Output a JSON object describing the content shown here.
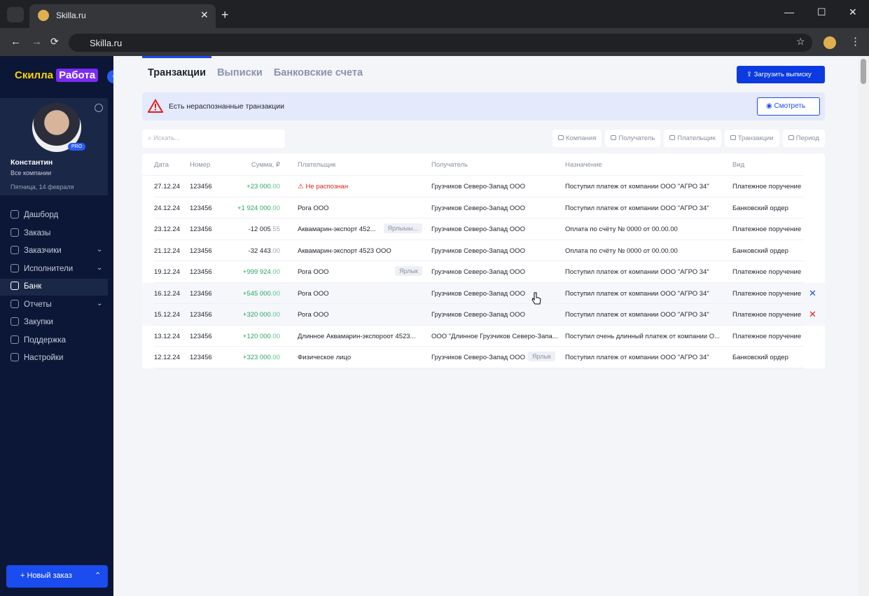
{
  "browser": {
    "tab_title": "Skilla.ru",
    "url": "Skilla.ru"
  },
  "sidebar": {
    "logo_part1": "Скилла",
    "logo_part2": "Работа",
    "profile": {
      "badge": "PRO",
      "name": "Константин",
      "company": "Все компании",
      "date": "Пятница, 14 февраля"
    },
    "menu": [
      {
        "label": "Дашборд",
        "chevron": false
      },
      {
        "label": "Заказы",
        "chevron": false
      },
      {
        "label": "Заказчики",
        "chevron": true
      },
      {
        "label": "Исполнители",
        "chevron": true
      },
      {
        "label": "Банк",
        "chevron": false,
        "active": true
      },
      {
        "label": "Отчеты",
        "chevron": true
      },
      {
        "label": "Закупки",
        "chevron": false
      },
      {
        "label": "Поддержка",
        "chevron": false
      },
      {
        "label": "Настройки",
        "chevron": false
      }
    ],
    "new_order": "Новый заказ"
  },
  "tabs": [
    "Транзакции",
    "Выписки",
    "Банковские счета"
  ],
  "upload_button": "Загрузить выписку",
  "alert": {
    "text": "Есть нераспознанные транзакции",
    "button": "Смотреть"
  },
  "search_placeholder": "Искать...",
  "filters": [
    "Компания",
    "Получатель",
    "Плательщик",
    "Транзакции",
    "Период"
  ],
  "table": {
    "headers": [
      "Дата",
      "Номер",
      "Сумма, ₽",
      "Плательщик",
      "Получатель",
      "Назначение",
      "Вид"
    ],
    "rows": [
      {
        "date": "27.12.24",
        "number": "123456",
        "amount": "+23 000",
        "amount_frac": ".00",
        "payer": "Не распознан",
        "payer_unrecognized": true,
        "recipient": "Грузчиков Северо-Запад ООО",
        "purpose": "Поступил платеж от компании ООО \"АГРО 34\"",
        "kind": "Платежное поручение"
      },
      {
        "date": "24.12.24",
        "number": "123456",
        "amount": "+1 924 000",
        "amount_frac": ".00",
        "payer": "Рога ООО",
        "recipient": "Грузчиков Северо-Запад ООО",
        "purpose": "Поступил платеж от компании ООО \"АГРО 34\"",
        "kind": "Банковский ордер"
      },
      {
        "date": "23.12.24",
        "number": "123456",
        "amount": "-12 005",
        "amount_frac": ".55",
        "payer": "Аквамарин-экспорт 452...",
        "payer_tag": "Ярлыыы...",
        "recipient": "Грузчиков Северо-Запад ООО",
        "purpose": "Оплата по счёту № 0000 от 00.00.00",
        "kind": "Платежное поручение"
      },
      {
        "date": "21.12.24",
        "number": "123456",
        "amount": "-32 443",
        "amount_frac": ".00",
        "payer": "Аквамарин-экспорт 4523 ООО",
        "recipient": "Грузчиков Северо-Запад ООО",
        "purpose": "Оплата по счёту № 0000 от 00.00.00",
        "kind": "Банковский ордер"
      },
      {
        "date": "19.12.24",
        "number": "123456",
        "amount": "+999 924",
        "amount_frac": ".00",
        "payer": "Рога ООО",
        "payer_tag": "Ярлык",
        "recipient": "Грузчиков Северо-Запад ООО",
        "purpose": "Поступил платеж от компании ООО \"АГРО 34\"",
        "kind": "Платежное поручение"
      },
      {
        "date": "16.12.24",
        "number": "123456",
        "amount": "+545 000",
        "amount_frac": ".00",
        "payer": "Рога ООО",
        "recipient": "Грузчиков Северо-Запад ООО",
        "purpose": "Поступил платеж от компании ООО \"АГРО 34\"",
        "kind": "Платежное поручение",
        "action": "blue"
      },
      {
        "date": "15.12.24",
        "number": "123456",
        "amount": "+320 000",
        "amount_frac": ".00",
        "payer": "Рога ООО",
        "recipient": "Грузчиков Северо-Запад ООО",
        "purpose": "Поступил платеж от компании ООО \"АГРО 34\"",
        "kind": "Платежное поручение",
        "action": "red"
      },
      {
        "date": "13.12.24",
        "number": "123456",
        "amount": "+120 000",
        "amount_frac": ".00",
        "payer": "Длинное Аквамарин-экспороот 4523...",
        "recipient": "ООО \"Длинное Грузчиков Северо-Запа...",
        "purpose": "Поступил очень длинный платеж от компании О...",
        "kind": "Платежное поручение"
      },
      {
        "date": "12.12.24",
        "number": "123456",
        "amount": "+323 000",
        "amount_frac": ".00",
        "payer": "Физическое лицо",
        "recipient": "Грузчиков Северо-Запад ООО",
        "recipient_tag": "Ярлык",
        "purpose": "Поступил платеж от компании ООО \"АГРО 34\"",
        "kind": "Банковский ордер"
      }
    ]
  }
}
